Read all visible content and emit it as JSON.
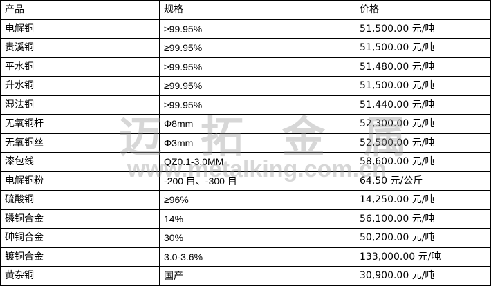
{
  "table": {
    "headers": [
      "产品",
      "规格",
      "价格"
    ],
    "rows": [
      [
        "电解铜",
        "≥99.95%",
        "51,500.00 元/吨"
      ],
      [
        "贵溪铜",
        "≥99.95%",
        "51,500.00 元/吨"
      ],
      [
        "平水铜",
        "≥99.95%",
        "51,480.00 元/吨"
      ],
      [
        "升水铜",
        "≥99.95%",
        "51,500.00 元/吨"
      ],
      [
        "湿法铜",
        "≥99.95%",
        "51,440.00 元/吨"
      ],
      [
        "无氧铜杆",
        "Φ8mm",
        "52,300.00 元/吨"
      ],
      [
        "无氧铜丝",
        "Φ3mm",
        "52,500.00 元/吨"
      ],
      [
        "漆包线",
        "QZ0.1-3.0MM",
        "58,600.00 元/吨"
      ],
      [
        "电解铜粉",
        "-200 目、-300 目",
        "64.50 元/公斤"
      ],
      [
        "硫酸铜",
        "≥96%",
        "14,250.00 元/吨"
      ],
      [
        "磷铜合金",
        "14%",
        "56,100.00 元/吨"
      ],
      [
        "砷铜合金",
        "30%",
        "50,200.00 元/吨"
      ],
      [
        "镀铜合金",
        "3.0-3.6%",
        "133,000.00 元/吨"
      ],
      [
        "黄杂铜",
        "国产",
        "30,900.00 元/吨"
      ]
    ]
  },
  "watermark": {
    "chinese": "迈拓金属",
    "url": "www.metalking.com.cn"
  }
}
